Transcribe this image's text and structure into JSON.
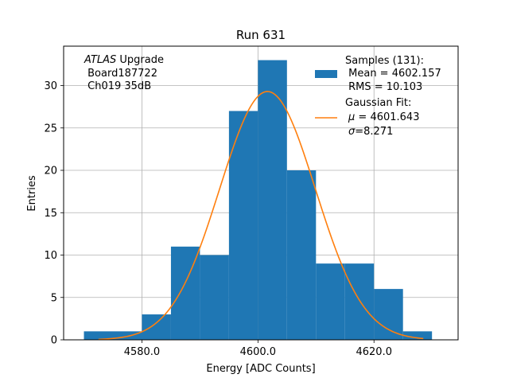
{
  "chart_data": {
    "type": "bar",
    "title": "Run 631",
    "xlabel": "Energy [ADC Counts]",
    "ylabel": "Entries",
    "xlim": [
      4566.5,
      4634.5
    ],
    "ylim": [
      0,
      34.65
    ],
    "xticks": [
      4580.0,
      4600.0,
      4620.0
    ],
    "xtick_labels": [
      "4580.0",
      "4600.0",
      "4620.0"
    ],
    "yticks": [
      0,
      5,
      10,
      15,
      20,
      25,
      30
    ],
    "ytick_labels": [
      "0",
      "5",
      "10",
      "15",
      "20",
      "25",
      "30"
    ],
    "grid": true,
    "bin_edges": [
      4570,
      4575,
      4580,
      4585,
      4590,
      4595,
      4600,
      4605,
      4610,
      4615,
      4620,
      4625,
      4630
    ],
    "values": [
      1,
      1,
      3,
      11,
      10,
      27,
      33,
      20,
      9,
      9,
      6,
      1
    ],
    "bar_color": "#1f77b4",
    "fit": {
      "type": "gaussian",
      "mu": 4601.643,
      "sigma": 8.271,
      "peak": 29.3,
      "x_range": [
        4572.5,
        4628.5
      ],
      "color": "#ff7f0e"
    },
    "annotation": {
      "italic": "ATLAS",
      "line1_rest": " Upgrade",
      "line2": " Board187722",
      "line3": " Ch019 35dB"
    },
    "legend": {
      "position": "top-right",
      "samples": {
        "line1": "Samples (131):",
        "line2": " Mean = 4602.157",
        "line3": " RMS = 10.103"
      },
      "fit": {
        "line1": "Gaussian Fit:",
        "line2_sym": "μ",
        "line2_rest": " = 4601.643",
        "line3_sym": "σ",
        "line3_rest": "=8.271"
      }
    }
  }
}
